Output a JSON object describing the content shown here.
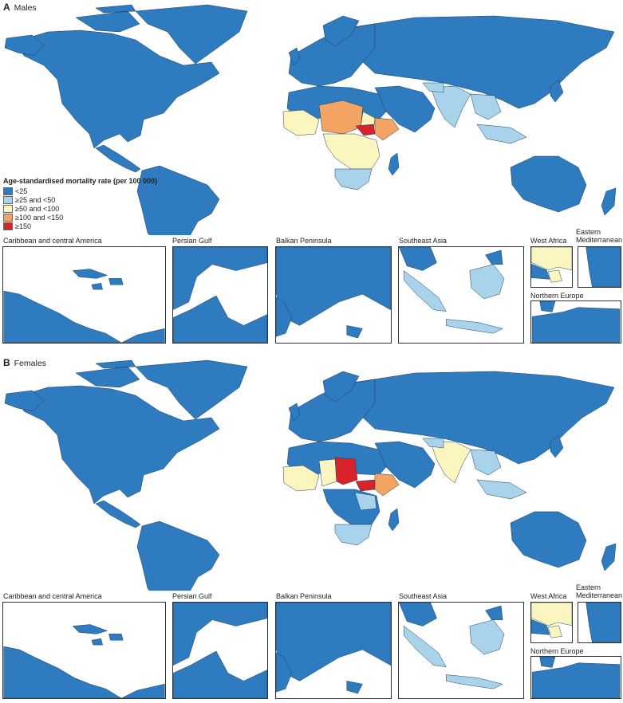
{
  "colors": {
    "lt25": "#2f7bbf",
    "25to50": "#a9d3ea",
    "50to100": "#fbf6c0",
    "100to150": "#f4a462",
    "gte150": "#d8232a",
    "nodata": "#8e8e8e",
    "border": "#1c3d5c"
  },
  "legend": {
    "title": "Age-standardised mortality rate (per 100 000)",
    "items": [
      {
        "label": "<25",
        "color_key": "lt25"
      },
      {
        "label": "≥25 and  <50",
        "color_key": "25to50"
      },
      {
        "label": "≥50 and  <100",
        "color_key": "50to100"
      },
      {
        "label": "≥100 and  <150",
        "color_key": "100to150"
      },
      {
        "label": "≥150",
        "color_key": "gte150"
      }
    ]
  },
  "panels": [
    {
      "letter": "A",
      "title": "Males"
    },
    {
      "letter": "B",
      "title": "Females"
    }
  ],
  "insets": [
    {
      "label": "Caribbean and central America"
    },
    {
      "label": "Persian Gulf"
    },
    {
      "label": "Balkan Peninsula"
    },
    {
      "label": "Southeast Asia"
    },
    {
      "label": "West Africa"
    },
    {
      "label": "Eastern\nMediterranean"
    },
    {
      "label": "Northern Europe"
    }
  ]
}
